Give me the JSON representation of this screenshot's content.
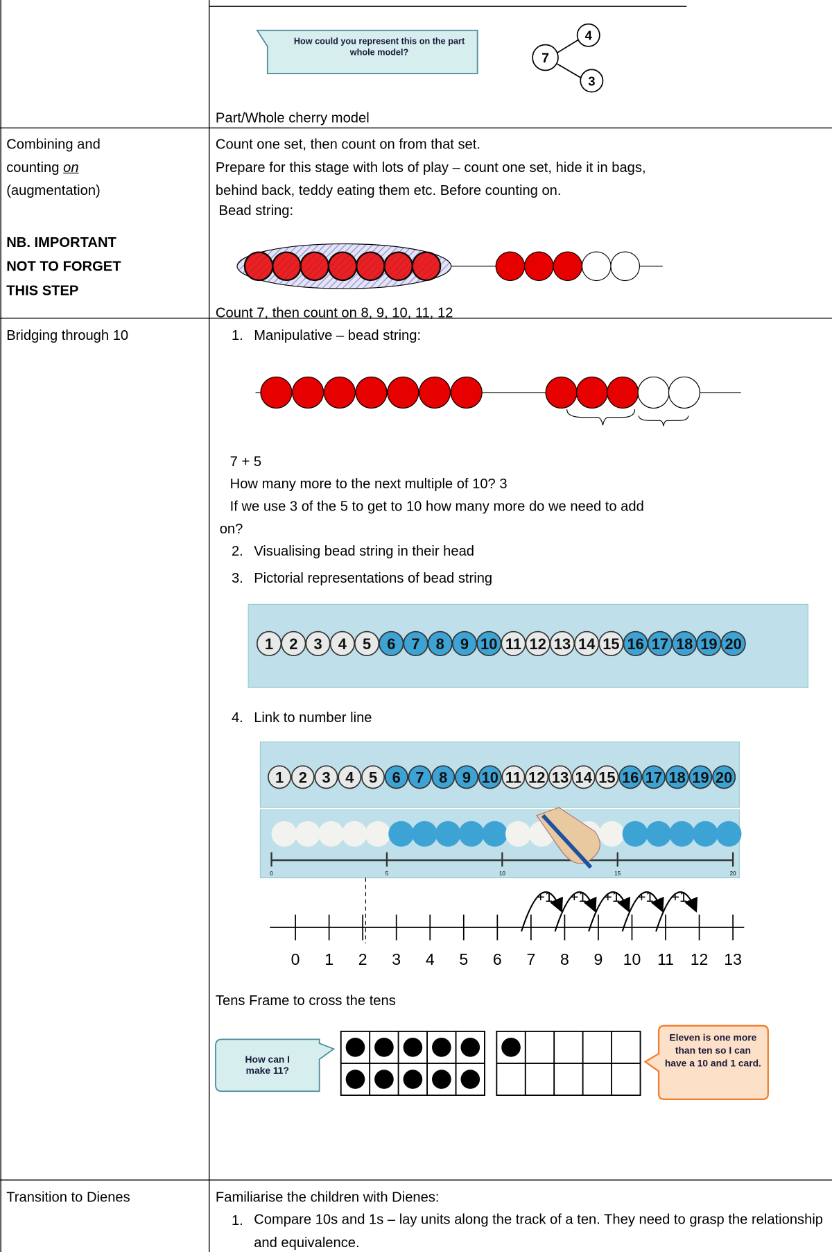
{
  "rows": [
    {
      "callout": "How could you represent this on the part whole model?",
      "cherry": {
        "whole": 7,
        "parts": [
          4,
          3
        ]
      },
      "caption": "Part/Whole cherry model"
    },
    {
      "label": {
        "lines": [
          "Combining and",
          "counting"
        ],
        "emphasis": "on",
        "after": "(augmentation)",
        "note": [
          "NB. IMPORTANT",
          "NOT TO FORGET",
          "THIS STEP"
        ]
      },
      "lines": [
        "Count one set, then count on from that set.",
        "Prepare for this stage with lots of play – count one set, hide it in bags,",
        "behind back, teddy eating them etc. Before counting on.",
        "Bead string:"
      ],
      "caption": "Count 7, then count on 8, 9, 10, 11, 12"
    },
    {
      "label": "Bridging through 10",
      "steps": [
        {
          "marker": "1.",
          "text": "Manipulative – bead string:"
        },
        {
          "marker": "2.",
          "text": "Visualising bead string in their head"
        },
        {
          "marker": "3.",
          "text": "Pictorial representations of bead string"
        },
        {
          "marker": "4.",
          "text": "Link to number line"
        }
      ],
      "prompts": [
        "7 + 5",
        "How many more to the next multiple of 10? 3",
        "If we use 3 of the 5 to get to 10 how many more do we need to add",
        "on?"
      ],
      "strip": [
        1,
        2,
        3,
        4,
        5,
        6,
        7,
        8,
        9,
        10,
        11,
        12,
        13,
        14,
        15,
        16,
        17,
        18,
        19,
        20
      ],
      "ruler": [
        0,
        5,
        10,
        15,
        20
      ],
      "number_line": {
        "labels": [
          0,
          1,
          2,
          3,
          4,
          5,
          6,
          7,
          8,
          9,
          10,
          11,
          12,
          13
        ],
        "jumps": [
          "+1",
          "+1",
          "+1",
          "+1",
          "+1"
        ]
      },
      "tens_heading": "Tens Frame to cross the tens",
      "question": "How can I make 11?",
      "answer": "Eleven is one more than ten so I can have a 10 and 1 card."
    },
    {
      "label": "Transition to Dienes",
      "intro": "Familiarise the children with Dienes:",
      "steps": [
        {
          "marker": "1.",
          "text": "Compare 10s and 1s – lay units along the track of a ten. They need to grasp the relationship and equivalence."
        }
      ]
    }
  ]
}
